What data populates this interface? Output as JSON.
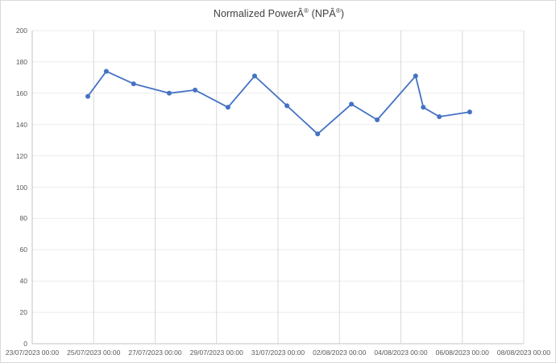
{
  "title": {
    "full": "Normalized PowerÂ® (NPÂ®)",
    "p1": "Normalized PowerÂ",
    "r1": "®",
    "p2": " (NPÂ",
    "r2": "®",
    "p3": ")"
  },
  "chart_data": {
    "type": "line",
    "title": "Normalized PowerÂ® (NPÂ®)",
    "legend": "none",
    "grid": true,
    "x_axis": {
      "kind": "datetime",
      "range_days": [
        0,
        16
      ],
      "start_label": "23/07/2023 00:00",
      "tick_interval_days": 2,
      "tick_labels": [
        "23/07/2023 00:00",
        "25/07/2023 00:00",
        "27/07/2023 00:00",
        "29/07/2023 00:00",
        "31/07/2023 00:00",
        "02/08/2023 00:00",
        "04/08/2023 00:00",
        "06/08/2023 00:00",
        "08/08/2023 00:00"
      ]
    },
    "y_axis": {
      "min": 0,
      "max": 200,
      "step": 20,
      "tick_labels": [
        "0",
        "20",
        "40",
        "60",
        "80",
        "100",
        "120",
        "140",
        "160",
        "180",
        "200"
      ]
    },
    "series": [
      {
        "name": "Normalized Power",
        "color": "#4472C4",
        "marker": "circle",
        "points": [
          {
            "x_days": 1.81,
            "y": 158
          },
          {
            "x_days": 2.41,
            "y": 174
          },
          {
            "x_days": 3.3,
            "y": 166
          },
          {
            "x_days": 4.46,
            "y": 160
          },
          {
            "x_days": 5.3,
            "y": 162
          },
          {
            "x_days": 6.37,
            "y": 151
          },
          {
            "x_days": 7.24,
            "y": 171
          },
          {
            "x_days": 8.29,
            "y": 152
          },
          {
            "x_days": 9.29,
            "y": 134
          },
          {
            "x_days": 10.39,
            "y": 153
          },
          {
            "x_days": 11.23,
            "y": 143
          },
          {
            "x_days": 12.48,
            "y": 171
          },
          {
            "x_days": 12.73,
            "y": 151
          },
          {
            "x_days": 13.25,
            "y": 145
          },
          {
            "x_days": 14.24,
            "y": 148
          }
        ]
      }
    ],
    "colors": {
      "series_line": "#4472C4",
      "h_gridline": "#ebebeb",
      "v_gridline": "#d9d9d9",
      "axis_line": "#c3c3c3",
      "tick_text": "#595959",
      "title_text": "#3f3f3f",
      "frame_border": "#d9d9d9",
      "background": "#ffffff"
    }
  }
}
